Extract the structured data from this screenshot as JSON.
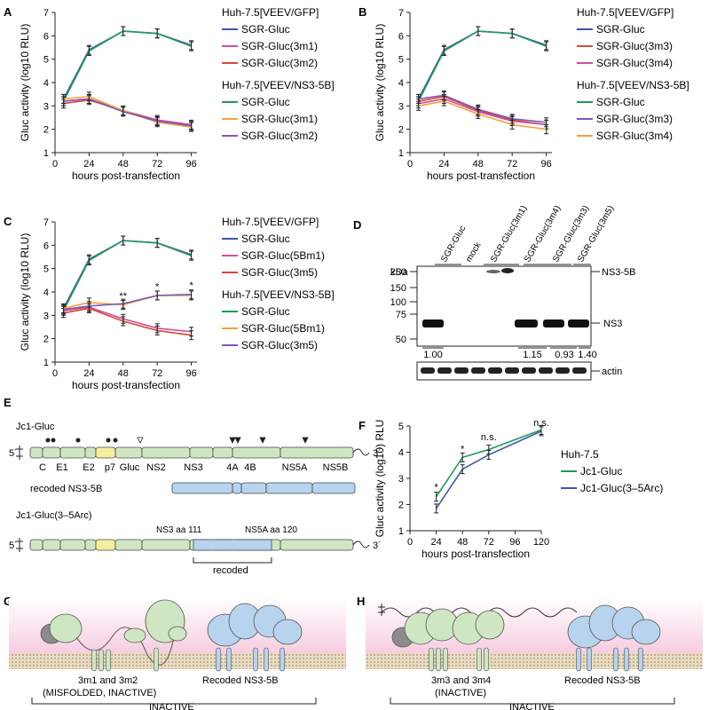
{
  "panels": {
    "A": {
      "letter": "A",
      "chart_data": {
        "type": "line",
        "xlabel": "hours post-transfection",
        "ylabel": "Gluc activity (log10 RLU)",
        "x": [
          6,
          24,
          48,
          72,
          96
        ],
        "xticks": [
          "0",
          "24",
          "48",
          "72",
          "96"
        ],
        "yticks": [
          "1",
          "2",
          "3",
          "4",
          "5",
          "6",
          "7"
        ],
        "xlim": [
          0,
          100
        ],
        "ylim": [
          1,
          7
        ],
        "legend": [
          {
            "title": "Huh-7.5[VEEV/GFP]",
            "items": [
              "SGR-Gluc",
              "SGR-Gluc(3m1)",
              "SGR-Gluc(3m2)"
            ],
            "colors": [
              "#3f57a8",
              "#d34d9e",
              "#d9483a"
            ]
          },
          {
            "title": "Huh-7.5[VEEV/NS3-5B]",
            "items": [
              "SGR-Gluc",
              "SGR-Gluc(3m1)",
              "SGR-Gluc(3m2)"
            ],
            "colors": [
              "#1f9a5a",
              "#f2a13a",
              "#7a5bb5"
            ]
          }
        ],
        "series": [
          {
            "name": "SGR-Gluc",
            "group": "Huh-7.5[VEEV/GFP]",
            "color": "#3f57a8",
            "values": [
              3.3,
              5.4,
              6.2,
              6.1,
              5.6
            ]
          },
          {
            "name": "SGR-Gluc",
            "group": "Huh-7.5[VEEV/NS3-5B]",
            "color": "#1f9a5a",
            "values": [
              3.2,
              5.35,
              6.2,
              6.1,
              5.55
            ]
          },
          {
            "name": "SGR-Gluc(3m1)",
            "group": "Huh-7.5[VEEV/GFP]",
            "color": "#d34d9e",
            "values": [
              3.2,
              3.3,
              2.8,
              2.4,
              2.2
            ]
          },
          {
            "name": "SGR-Gluc(3m2)",
            "group": "Huh-7.5[VEEV/GFP]",
            "color": "#d9483a",
            "values": [
              3.1,
              3.25,
              2.8,
              2.35,
              2.1
            ]
          },
          {
            "name": "SGR-Gluc(3m1)",
            "group": "Huh-7.5[VEEV/NS3-5B]",
            "color": "#f2a13a",
            "values": [
              3.3,
              3.4,
              2.8,
              2.3,
              2.1
            ]
          },
          {
            "name": "SGR-Gluc(3m2)",
            "group": "Huh-7.5[VEEV/NS3-5B]",
            "color": "#7a5bb5",
            "values": [
              3.2,
              3.3,
              2.75,
              2.35,
              2.15
            ]
          }
        ],
        "annotations": []
      }
    },
    "B": {
      "letter": "B",
      "chart_data": {
        "type": "line",
        "xlabel": "hours post-transfection",
        "ylabel": "Gluc activity (log10 RLU)",
        "x": [
          6,
          24,
          48,
          72,
          96
        ],
        "xticks": [
          "0",
          "24",
          "48",
          "72",
          "96"
        ],
        "yticks": [
          "1",
          "2",
          "3",
          "4",
          "5",
          "6",
          "7"
        ],
        "xlim": [
          0,
          100
        ],
        "ylim": [
          1,
          7
        ],
        "legend": [
          {
            "title": "Huh-7.5[VEEV/GFP]",
            "items": [
              "SGR-Gluc",
              "SGR-Gluc(3m3)",
              "SGR-Gluc(3m4)"
            ],
            "colors": [
              "#3f57a8",
              "#d9483a",
              "#d34d9e"
            ]
          },
          {
            "title": "Huh-7.5[VEEV/NS3-5B]",
            "items": [
              "SGR-Gluc",
              "SGR-Gluc(3m3)",
              "SGR-Gluc(3m4)"
            ],
            "colors": [
              "#1f9a5a",
              "#7a5bb5",
              "#f2a13a"
            ]
          }
        ],
        "series": [
          {
            "name": "SGR-Gluc",
            "group": "Huh-7.5[VEEV/GFP]",
            "color": "#3f57a8",
            "values": [
              3.3,
              5.4,
              6.2,
              6.1,
              5.6
            ]
          },
          {
            "name": "SGR-Gluc",
            "group": "Huh-7.5[VEEV/NS3-5B]",
            "color": "#1f9a5a",
            "values": [
              3.2,
              5.35,
              6.2,
              6.1,
              5.55
            ]
          },
          {
            "name": "SGR-Gluc(3m3)",
            "group": "Huh-7.5[VEEV/GFP]",
            "color": "#d9483a",
            "values": [
              3.2,
              3.4,
              2.8,
              2.4,
              2.2
            ]
          },
          {
            "name": "SGR-Gluc(3m4)",
            "group": "Huh-7.5[VEEV/GFP]",
            "color": "#d34d9e",
            "values": [
              3.1,
              3.3,
              2.75,
              2.35,
              2.2
            ]
          },
          {
            "name": "SGR-Gluc(3m3)",
            "group": "Huh-7.5[VEEV/NS3-5B]",
            "color": "#7a5bb5",
            "values": [
              3.3,
              3.45,
              2.85,
              2.45,
              2.3
            ]
          },
          {
            "name": "SGR-Gluc(3m4)",
            "group": "Huh-7.5[VEEV/NS3-5B]",
            "color": "#f2a13a",
            "values": [
              3.0,
              3.2,
              2.65,
              2.2,
              2.0
            ]
          }
        ],
        "annotations": []
      }
    },
    "C": {
      "letter": "C",
      "chart_data": {
        "type": "line",
        "xlabel": "hours post-transfection",
        "ylabel": "Gluc activity (log10 RLU)",
        "x": [
          6,
          24,
          48,
          72,
          96
        ],
        "xticks": [
          "0",
          "24",
          "48",
          "72",
          "96"
        ],
        "yticks": [
          "1",
          "2",
          "3",
          "4",
          "5",
          "6",
          "7"
        ],
        "xlim": [
          0,
          100
        ],
        "ylim": [
          1,
          7
        ],
        "legend": [
          {
            "title": "Huh-7.5[VEEV/GFP]",
            "items": [
              "SGR-Gluc",
              "SGR-Gluc(5Bm1)",
              "SGR-Gluc(3m5)"
            ],
            "colors": [
              "#3f57a8",
              "#d34d9e",
              "#d9483a"
            ]
          },
          {
            "title": "Huh-7.5[VEEV/NS3-5B]",
            "items": [
              "SGR-Gluc",
              "SGR-Gluc(5Bm1)",
              "SGR-Gluc(3m5)"
            ],
            "colors": [
              "#1f9a5a",
              "#f2a13a",
              "#7a5bb5"
            ]
          }
        ],
        "series": [
          {
            "name": "SGR-Gluc",
            "group": "Huh-7.5[VEEV/GFP]",
            "color": "#3f57a8",
            "values": [
              3.3,
              5.4,
              6.2,
              6.1,
              5.6
            ]
          },
          {
            "name": "SGR-Gluc",
            "group": "Huh-7.5[VEEV/NS3-5B]",
            "color": "#1f9a5a",
            "values": [
              3.2,
              5.35,
              6.2,
              6.1,
              5.55
            ]
          },
          {
            "name": "SGR-Gluc(5Bm1)",
            "group": "Huh-7.5[VEEV/GFP]",
            "color": "#d34d9e",
            "values": [
              3.2,
              3.35,
              2.85,
              2.45,
              2.3
            ]
          },
          {
            "name": "SGR-Gluc(3m5)",
            "group": "Huh-7.5[VEEV/GFP]",
            "color": "#d9483a",
            "values": [
              3.1,
              3.3,
              2.75,
              2.35,
              2.15
            ]
          },
          {
            "name": "SGR-Gluc(5Bm1)",
            "group": "Huh-7.5[VEEV/NS3-5B]",
            "color": "#f2a13a",
            "values": [
              3.3,
              3.55,
              3.45,
              3.85,
              3.85
            ]
          },
          {
            "name": "SGR-Gluc(3m5)",
            "group": "Huh-7.5[VEEV/NS3-5B]",
            "color": "#7a5bb5",
            "values": [
              3.25,
              3.4,
              3.5,
              3.85,
              3.9
            ]
          }
        ],
        "annotations": [
          {
            "x": 48,
            "y": 3.7,
            "text": "**"
          },
          {
            "x": 72,
            "y": 4.1,
            "text": "*"
          },
          {
            "x": 96,
            "y": 4.15,
            "text": "*"
          }
        ]
      }
    },
    "F": {
      "letter": "F",
      "chart_data": {
        "type": "line",
        "xlabel": "hours post-transfection",
        "ylabel": "Gluc activity (log10) RLU",
        "x": [
          24,
          48,
          72,
          120
        ],
        "xticks": [
          "0",
          "24",
          "48",
          "72",
          "96",
          "120"
        ],
        "yticks": [
          "1",
          "2",
          "3",
          "4",
          "5"
        ],
        "xlim": [
          0,
          120
        ],
        "ylim": [
          1,
          5
        ],
        "legend": [
          {
            "title": "Huh-7.5",
            "items": [
              "Jc1-Gluc",
              "Jc1-Gluc(3–5Arc)"
            ],
            "colors": [
              "#1f9a5a",
              "#3f57a8"
            ]
          }
        ],
        "series": [
          {
            "name": "Jc1-Gluc",
            "color": "#1f9a5a",
            "values": [
              2.3,
              3.8,
              4.1,
              4.85
            ]
          },
          {
            "name": "Jc1-Gluc(3–5Arc)",
            "color": "#3f57a8",
            "values": [
              1.85,
              3.35,
              3.9,
              4.8
            ]
          }
        ],
        "annotations": [
          {
            "x": 24,
            "y": 2.55,
            "text": "*"
          },
          {
            "x": 48,
            "y": 4.0,
            "text": "*"
          },
          {
            "x": 72,
            "y": 4.45,
            "text": "n.s."
          },
          {
            "x": 120,
            "y": 5.0,
            "text": "n.s."
          }
        ]
      }
    }
  },
  "panel_D": {
    "letter": "D",
    "kda_label": "kDa",
    "lanes": [
      "SGR-Gluc",
      "mock",
      "SGR-Gluc(3m1)",
      "SGR-Gluc(3m4)",
      "SGR-Gluc(3m3)",
      "SGR-Gluc(3m5)"
    ],
    "markers": [
      "250",
      "150",
      "100",
      "75",
      "50"
    ],
    "band_labels": [
      "NS3-5B",
      "NS3",
      "actin"
    ],
    "quant": [
      "1.00",
      "1.15",
      "0.93",
      "1.40"
    ]
  },
  "panel_E": {
    "letter": "E",
    "construct1": "Jc1-Gluc",
    "construct2": "recoded NS3-5B",
    "construct3": "Jc1-Gluc(3–5Arc)",
    "end5": "5´",
    "end3": "3´",
    "genes": [
      "C",
      "E1",
      "E2",
      "p7",
      "Gluc",
      "NS2",
      "NS3",
      "4A",
      "4B",
      "NS5A",
      "NS5B"
    ],
    "site1": "NS3 aa 111",
    "site2": "NS5A aa 120",
    "recoded": "recoded"
  },
  "panel_G": {
    "letter": "G",
    "label1": "3m1 and 3m2",
    "label1b": "(MISFOLDED, INACTIVE)",
    "label2": "Recoded NS3-5B",
    "bracket": "INACTIVE"
  },
  "panel_H": {
    "letter": "H",
    "label1": "3m3 and 3m4",
    "label1b": "(INACTIVE)",
    "label2": "Recoded NS3-5B",
    "bracket": "INACTIVE"
  }
}
